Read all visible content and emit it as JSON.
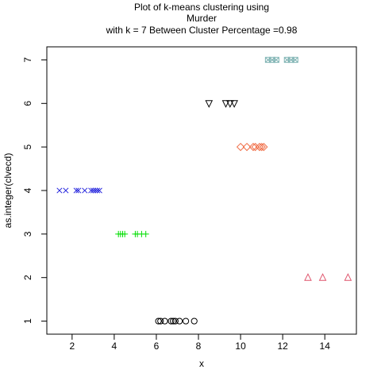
{
  "chart_data": {
    "type": "scatter",
    "title_lines": [
      "Plot of k-means clustering using",
      "Murder",
      "with  k = 7 Between Cluster Percentage =0.98"
    ],
    "xlabel": "x",
    "ylabel": "as.integer(clvecd)",
    "xlim": [
      0.8,
      15.5
    ],
    "ylim": [
      0.7,
      7.3
    ],
    "xticks": [
      2,
      4,
      6,
      8,
      10,
      12,
      14
    ],
    "yticks": [
      1,
      2,
      3,
      4,
      5,
      6,
      7
    ],
    "grid": false,
    "series": [
      {
        "cluster": 1,
        "marker": "circle",
        "color": "#000000",
        "x": [
          6.1,
          6.2,
          6.4,
          6.7,
          6.8,
          6.9,
          7.1,
          7.4,
          7.8
        ],
        "y": 1
      },
      {
        "cluster": 2,
        "marker": "triangle-up",
        "color": "#df536b",
        "x": [
          13.2,
          13.9,
          15.1
        ],
        "y": 2
      },
      {
        "cluster": 3,
        "marker": "plus",
        "color": "#00dd00",
        "x": [
          4.2,
          4.3,
          4.4,
          4.5,
          5.0,
          5.1,
          5.3,
          5.5
        ],
        "y": 3
      },
      {
        "cluster": 4,
        "marker": "cross",
        "color": "#2222dd",
        "x": [
          1.4,
          1.7,
          2.2,
          2.3,
          2.6,
          2.9,
          3.0,
          3.1,
          3.2,
          3.3
        ],
        "y": 4
      },
      {
        "cluster": 5,
        "marker": "diamond",
        "color": "#f0704a",
        "x": [
          10.0,
          10.3,
          10.6,
          10.7,
          10.9,
          11.0,
          11.1
        ],
        "y": 5
      },
      {
        "cluster": 6,
        "marker": "triangle-down",
        "color": "#000000",
        "x": [
          8.5,
          9.3,
          9.5,
          9.7
        ],
        "y": 6
      },
      {
        "cluster": 7,
        "marker": "square-cross",
        "color": "#7fb3b3",
        "x": [
          11.3,
          11.5,
          11.7,
          12.2,
          12.4,
          12.6
        ],
        "y": 7
      }
    ]
  }
}
